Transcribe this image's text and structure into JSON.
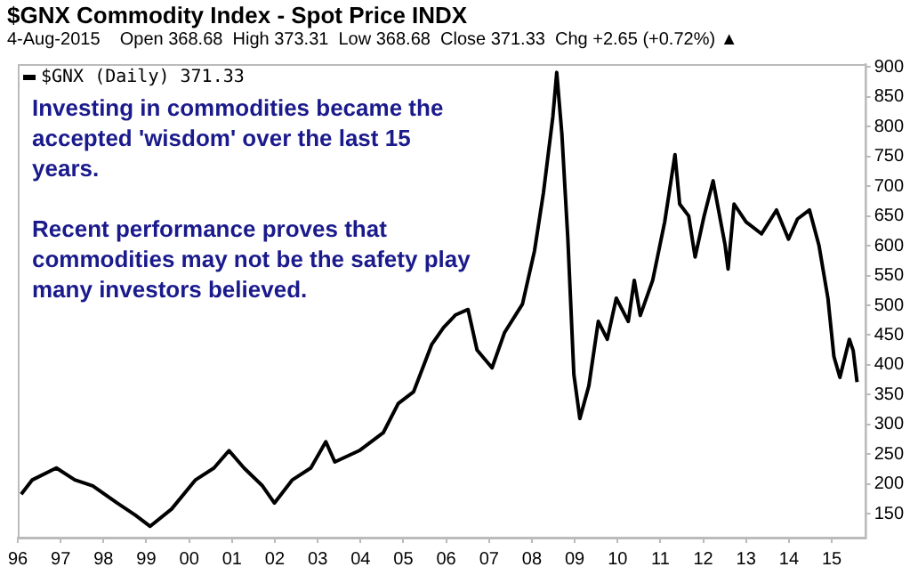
{
  "chart_data": {
    "type": "line",
    "title": "$GNX Commodity Index - Spot Price INDX",
    "subtitle": "4-Aug-2015    Open 368.68  High 373.31  Low 368.68  Close 371.33  Chg +2.65 (+0.72%) ▲",
    "annotations": [
      "Investing in commodities became the accepted 'wisdom' over the last 15 years.",
      "Recent performance proves that commodities may not be the safety play many investors believed."
    ],
    "legend": "top left",
    "marker": "none",
    "line_style": "solid",
    "grid": false,
    "xlim": [
      1996,
      2015.78
    ],
    "xticks": [
      {
        "value": 1996,
        "label": "96"
      },
      {
        "value": 1997,
        "label": "97"
      },
      {
        "value": 1998,
        "label": "98"
      },
      {
        "value": 1999,
        "label": "99"
      },
      {
        "value": 2000,
        "label": "00"
      },
      {
        "value": 2001,
        "label": "01"
      },
      {
        "value": 2002,
        "label": "02"
      },
      {
        "value": 2003,
        "label": "03"
      },
      {
        "value": 2004,
        "label": "04"
      },
      {
        "value": 2005,
        "label": "05"
      },
      {
        "value": 2006,
        "label": "06"
      },
      {
        "value": 2007,
        "label": "07"
      },
      {
        "value": 2008,
        "label": "08"
      },
      {
        "value": 2009,
        "label": "09"
      },
      {
        "value": 2010,
        "label": "10"
      },
      {
        "value": 2011,
        "label": "11"
      },
      {
        "value": 2012,
        "label": "12"
      },
      {
        "value": 2013,
        "label": "13"
      },
      {
        "value": 2014,
        "label": "14"
      },
      {
        "value": 2015,
        "label": "15"
      }
    ],
    "ylim": [
      110,
      905
    ],
    "yticks": [
      150,
      200,
      250,
      300,
      350,
      400,
      450,
      500,
      550,
      600,
      650,
      700,
      750,
      800,
      850,
      900
    ],
    "series": [
      {
        "name": "$GNX (Daily) 371.33",
        "color": "#000000",
        "x": [
          1996.08,
          1996.34,
          1996.9,
          1997.33,
          1997.75,
          1998.32,
          1998.74,
          1999.09,
          1999.59,
          2000.15,
          2000.58,
          2000.93,
          2001.28,
          2001.71,
          2001.99,
          2002.41,
          2002.84,
          2003.19,
          2003.4,
          2003.97,
          2004.53,
          2004.88,
          2005.24,
          2005.66,
          2005.94,
          2006.22,
          2006.51,
          2006.72,
          2007.07,
          2007.36,
          2007.78,
          2008.06,
          2008.27,
          2008.49,
          2008.58,
          2008.7,
          2008.84,
          2008.98,
          2009.12,
          2009.33,
          2009.55,
          2009.76,
          2009.97,
          2010.25,
          2010.39,
          2010.53,
          2010.82,
          2011.1,
          2011.34,
          2011.45,
          2011.66,
          2011.81,
          2012.02,
          2012.23,
          2012.51,
          2012.58,
          2012.72,
          2013.0,
          2013.36,
          2013.71,
          2013.99,
          2014.2,
          2014.48,
          2014.7,
          2014.91,
          2015.05,
          2015.19,
          2015.41,
          2015.5,
          2015.59
        ],
        "values": [
          183,
          207,
          227,
          207,
          197,
          168,
          148,
          129,
          158,
          207,
          227,
          256,
          227,
          197,
          168,
          207,
          227,
          271,
          237,
          256,
          286,
          335,
          355,
          434,
          463,
          484,
          493,
          425,
          395,
          454,
          502,
          591,
          689,
          817,
          891,
          788,
          611,
          384,
          310,
          365,
          473,
          443,
          512,
          473,
          542,
          483,
          542,
          640,
          753,
          670,
          650,
          581,
          650,
          709,
          601,
          561,
          670,
          640,
          620,
          660,
          611,
          645,
          660,
          601,
          512,
          414,
          379,
          443,
          424,
          371
        ]
      }
    ]
  }
}
